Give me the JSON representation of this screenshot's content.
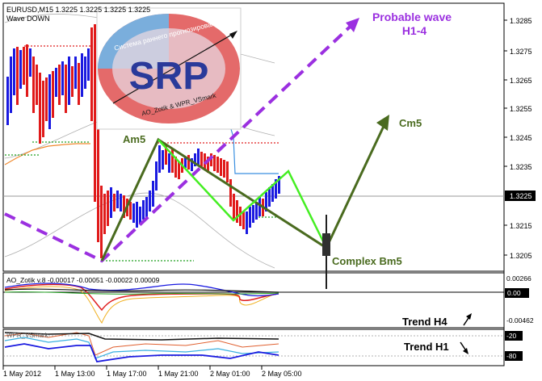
{
  "header": {
    "symbol_line": "EURUSD,M15  1.3225 1.3225 1.3225 1.3225",
    "indicator_line": "Wave DOWN"
  },
  "logo": {
    "letters": "SRP",
    "arc_text": "Система раннего прогнозирования",
    "authors": "AO_Zotik & WPR_VSmark"
  },
  "annotations": {
    "probable_wave_line1": "Probable wave",
    "probable_wave_line2": "H1-4",
    "am5": "Am5",
    "cm5": "Cm5",
    "complex_bm5": "Complex Bm5",
    "trend_h4": "Trend H4",
    "trend_h1": "Trend H1"
  },
  "price_axis": {
    "labels": [
      "1.3285",
      "1.3275",
      "1.3265",
      "1.3255",
      "1.3245",
      "1.3235",
      "1.3215",
      "1.3205"
    ],
    "current_price": "1.3225"
  },
  "ao_panel": {
    "title": "AO_Zotik v.8 -0.00017 -0.00051 -0.00022 0.00009",
    "axis_labels": [
      "0.00266",
      "0.00",
      "-0.00462"
    ]
  },
  "wpr_panel": {
    "title": "WPR_VSmark",
    "axis_labels": [
      "-20",
      "-80"
    ]
  },
  "time_axis": {
    "labels": [
      "1 May 2012",
      "1 May 13:00",
      "1 May 17:00",
      "1 May 21:00",
      "2 May 01:00",
      "2 May 05:00"
    ]
  },
  "colors": {
    "wave_purple": "#9b30e0",
    "wave_dark_green": "#4a6b1f",
    "wave_light_green": "#44ee22",
    "candle_bull": "#1a1ae0",
    "candle_bear": "#e01a1a"
  }
}
